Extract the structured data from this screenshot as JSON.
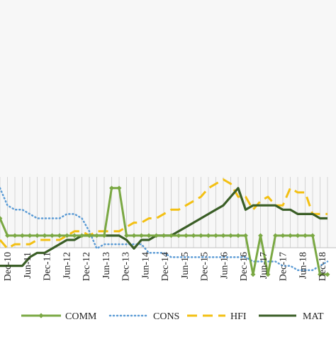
{
  "chart_data": {
    "type": "line",
    "title": "",
    "xlabel": "",
    "ylabel": "",
    "x_tick_labels": [
      "Dec-10",
      "Jun-11",
      "Dec-11",
      "Jun-12",
      "Dec-12",
      "Jun-13",
      "Dec-13",
      "Jun-14",
      "Dec-14",
      "Jun-15",
      "Dec-15",
      "Jun-16",
      "Dec-16",
      "Jun-17",
      "Dec-17",
      "Jun-18",
      "Dec-18"
    ],
    "grid": "vertical",
    "legend_position": "bottom",
    "series": [
      {
        "name": "COMM",
        "style": "solid-diamond",
        "color": "#7aa843",
        "values": [
          40,
          36,
          36,
          36,
          36,
          36,
          36,
          36,
          36,
          36,
          36,
          36,
          36,
          36,
          36,
          47,
          47,
          36,
          36,
          36,
          36,
          36,
          36,
          36,
          36,
          36,
          36,
          36,
          36,
          36,
          36,
          36,
          36,
          36,
          27,
          36,
          27,
          36,
          36,
          36,
          36,
          36,
          36,
          27,
          27
        ]
      },
      {
        "name": "CONS",
        "style": "dotted",
        "color": "#5b9bd5",
        "values": [
          47,
          43,
          42,
          42,
          41,
          40,
          40,
          40,
          40,
          41,
          41,
          40,
          37,
          33,
          34,
          34,
          34,
          34,
          34,
          34,
          32,
          32,
          32,
          31,
          31,
          31,
          31,
          31,
          31,
          31,
          31,
          31,
          31,
          31,
          30,
          30,
          30,
          30,
          29,
          29,
          28,
          28,
          28,
          29,
          30
        ]
      },
      {
        "name": "HFI",
        "style": "dashed",
        "color": "#f3c013",
        "values": [
          35,
          33,
          34,
          34,
          34,
          35,
          35,
          35,
          35,
          36,
          37,
          37,
          36,
          37,
          37,
          37,
          37,
          38,
          39,
          39,
          40,
          40,
          41,
          42,
          42,
          43,
          44,
          45,
          47,
          48,
          49,
          48,
          45,
          45,
          42,
          44,
          45,
          43,
          43,
          47,
          46,
          46,
          41,
          41,
          41
        ]
      },
      {
        "name": "MAT",
        "style": "solid",
        "color": "#3a5e26",
        "values": [
          29,
          29,
          29,
          29,
          31,
          32,
          32,
          33,
          34,
          35,
          35,
          36,
          36,
          36,
          36,
          36,
          36,
          35,
          33,
          35,
          35,
          36,
          36,
          36,
          37,
          38,
          39,
          40,
          41,
          42,
          43,
          45,
          47,
          42,
          43,
          43,
          43,
          43,
          42,
          42,
          41,
          41,
          41,
          40,
          40
        ]
      }
    ]
  }
}
